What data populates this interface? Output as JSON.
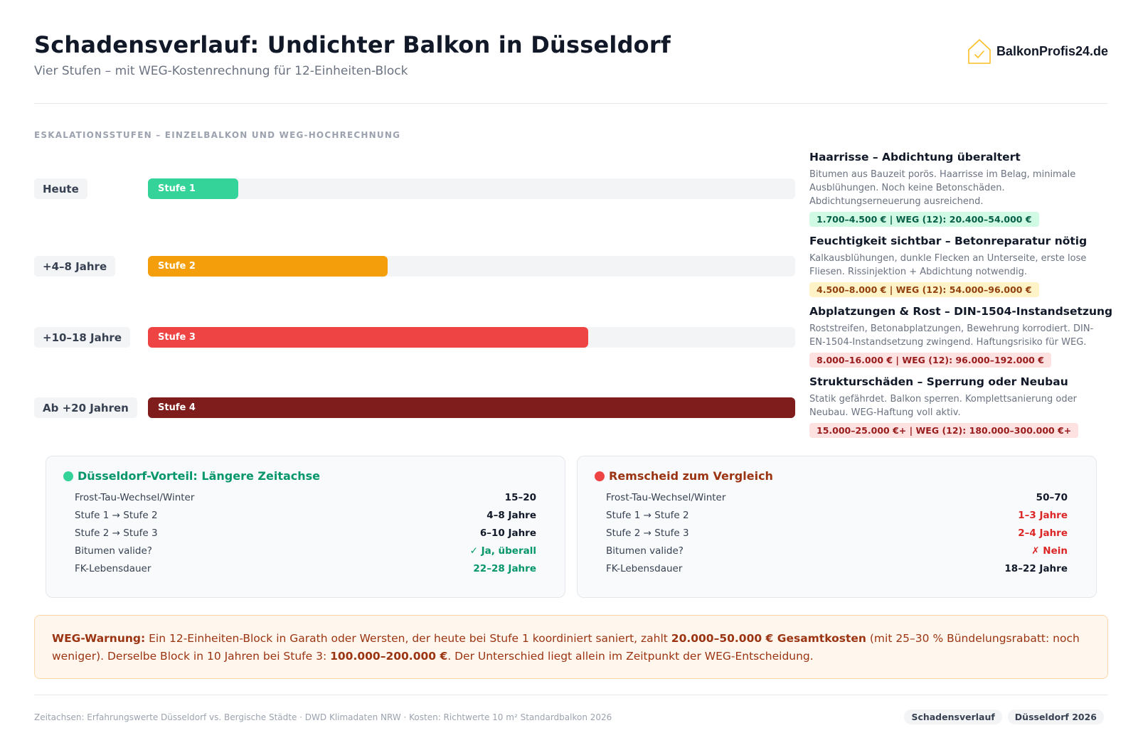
{
  "header": {
    "title": "Schadensverlauf: Undichter Balkon in Düsseldorf",
    "subtitle": "Vier Stufen – mit WEG-Kostenrechnung für 12-Einheiten-Block",
    "logo_text": "BalkonProfis24.de",
    "logo_icon": "house-check-icon"
  },
  "section_label": "ESKALATIONSSTUFEN – EINZELBALKON UND WEG-HOCHRECHNUNG",
  "stages": [
    {
      "time": "Heute",
      "label": "Stufe 1",
      "progress": 0.14,
      "color": "#34d399",
      "title": "Haarrisse – Abdichtung überaltert",
      "text": "Bitumen aus Bauzeit porös. Haarrisse im Belag, minimale Ausblühungen. Noch keine Betonschäden. Abdichtungserneuerung ausreichend.",
      "cost": "1.700–4.500 € | WEG (12): 20.400–54.000 €",
      "cost_bg": "#d1fae5",
      "cost_color": "#065f46"
    },
    {
      "time": "+4–8 Jahre",
      "label": "Stufe 2",
      "progress": 0.37,
      "color": "#f59e0b",
      "title": "Feuchtigkeit sichtbar – Betonreparatur nötig",
      "text": "Kalkausblühungen, dunkle Flecken an Unterseite, erste lose Fliesen. Rissinjektion + Abdichtung notwendig.",
      "cost": "4.500–8.000 € | WEG (12): 54.000–96.000 €",
      "cost_bg": "#fef3c7",
      "cost_color": "#92400e"
    },
    {
      "time": "+10–18 Jahre",
      "label": "Stufe 3",
      "progress": 0.68,
      "color": "#ef4444",
      "title": "Abplatzungen & Rost – DIN-1504-Instandsetzung",
      "text": "Roststreifen, Betonabplatzungen, Bewehrung korrodiert. DIN-EN-1504-Instandsetzung zwingend. Haftungsrisiko für WEG.",
      "cost": "8.000–16.000 € | WEG (12): 96.000–192.000 €",
      "cost_bg": "#fee2e2",
      "cost_color": "#991b1b"
    },
    {
      "time": "Ab +20 Jahren",
      "label": "Stufe 4",
      "progress": 1.0,
      "color": "#7f1d1d",
      "title": "Strukturschäden – Sperrung oder Neubau",
      "text": "Statik gefährdet. Balkon sperren. Komplettsanierung oder Neubau. WEG-Haftung voll aktiv.",
      "cost": "15.000–25.000 €+ | WEG (12): 180.000–300.000 €+",
      "cost_bg": "#fee2e2",
      "cost_color": "#991b1b"
    }
  ],
  "cards": [
    {
      "title": "Düsseldorf-Vorteil: Längere Zeitachse",
      "title_color": "#059669",
      "icon_color": "#34d399",
      "rows": [
        {
          "label": "Frost-Tau-Wechsel/Winter",
          "value": "15–20",
          "color": "#111827"
        },
        {
          "label": "Stufe 1 → Stufe 2",
          "value": "4–8 Jahre",
          "color": "#111827"
        },
        {
          "label": "Stufe 2 → Stufe 3",
          "value": "6–10 Jahre",
          "color": "#111827"
        },
        {
          "label": "Bitumen valide?",
          "value": "✓ Ja, überall",
          "color": "#059669"
        },
        {
          "label": "FK-Lebensdauer",
          "value": "22–28 Jahre",
          "color": "#059669"
        }
      ]
    },
    {
      "title": "Remscheid zum Vergleich",
      "title_color": "#9a3412",
      "icon_color": "#ef4444",
      "rows": [
        {
          "label": "Frost-Tau-Wechsel/Winter",
          "value": "50–70",
          "color": "#111827"
        },
        {
          "label": "Stufe 1 → Stufe 2",
          "value": "1–3 Jahre",
          "color": "#dc2626"
        },
        {
          "label": "Stufe 2 → Stufe 3",
          "value": "2–4 Jahre",
          "color": "#dc2626"
        },
        {
          "label": "Bitumen valide?",
          "value": "✗ Nein",
          "color": "#dc2626"
        },
        {
          "label": "FK-Lebensdauer",
          "value": "18–22 Jahre",
          "color": "#111827"
        }
      ]
    }
  ],
  "warning": {
    "lead": "WEG-Warnung:",
    "part1": " Ein 12-Einheiten-Block in Garath oder Wersten, der heute bei Stufe 1 koordiniert saniert, zahlt ",
    "bold1": "20.000–50.000 € Gesamtkosten",
    "part2": " (mit 25–30 % Bündelungsrabatt: noch weniger). Derselbe Block in 10 Jahren bei Stufe 3: ",
    "bold2": "100.000–200.000 €",
    "part3": ". Der Unterschied liegt allein im Zeitpunkt der WEG-Entscheidung."
  },
  "footer": {
    "note": "Zeitachsen: Erfahrungswerte Düsseldorf vs. Bergische Städte · DWD Klimadaten NRW · Kosten: Richtwerte 10 m² Standardbalkon 2026",
    "tags": [
      "Schadensverlauf",
      "Düsseldorf 2026"
    ]
  }
}
